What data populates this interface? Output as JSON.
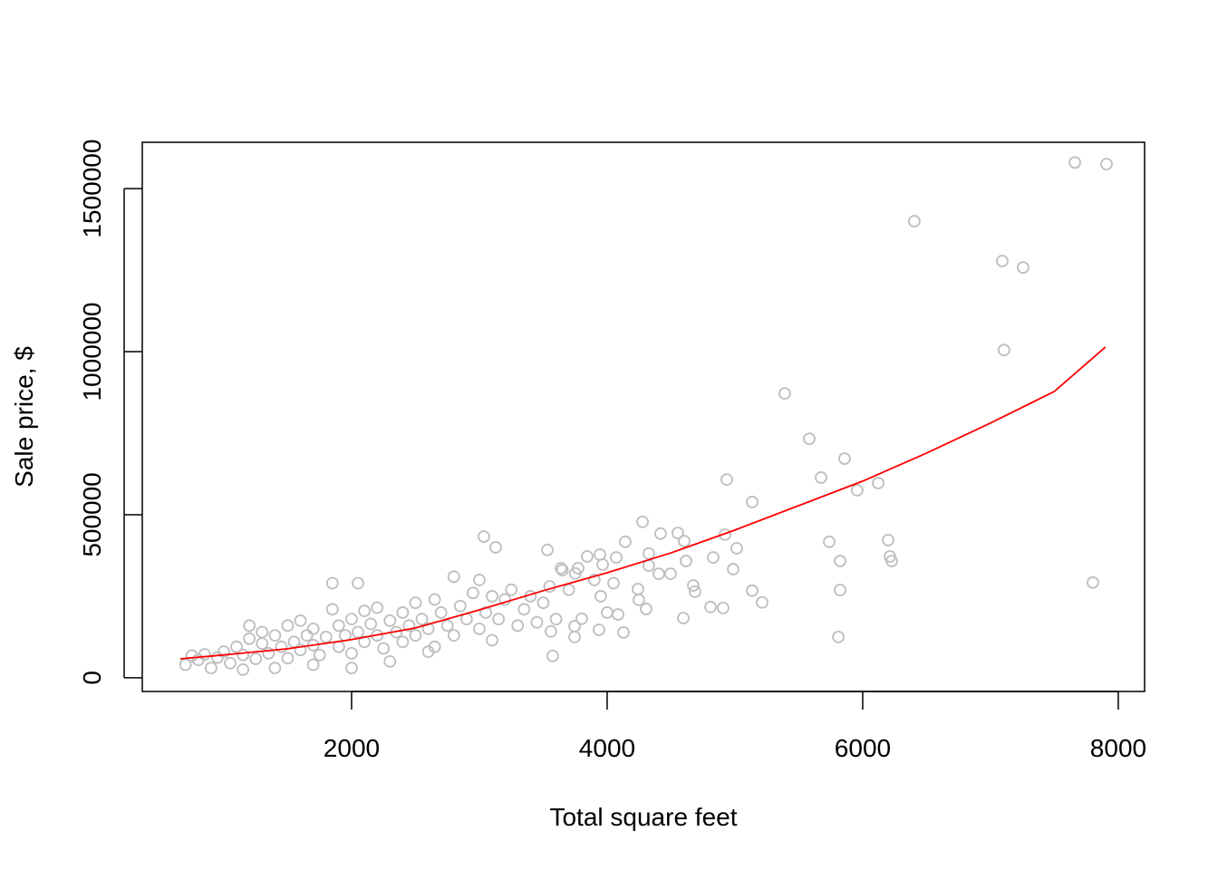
{
  "chart_data": {
    "type": "scatter",
    "xlabel": "Total square feet",
    "ylabel": "Sale price, $",
    "x": [
      7660,
      7908,
      6404,
      7092,
      7255,
      7106,
      5390,
      5582,
      5674,
      5858,
      5957,
      6121,
      4936,
      5135,
      6199,
      6213,
      6227,
      5738,
      5823,
      5823,
      5809,
      7801,
      4922,
      5014,
      4986,
      5135,
      5213,
      4908,
      4809,
      4830,
      4674,
      4688,
      4596,
      4617,
      4603,
      4553,
      4418,
      4277,
      4404,
      4496,
      4305,
      4326,
      4326,
      4241,
      4248,
      4142,
      4128,
      4085,
      4071,
      3965,
      3943,
      3844,
      3936,
      3801,
      3745,
      3745,
      3574,
      3560,
      3532,
      3035,
      3128,
      3773,
      3638,
      700,
      750,
      800,
      850,
      900,
      950,
      1000,
      1050,
      1100,
      1150,
      1200,
      1200,
      1250,
      1300,
      1300,
      1350,
      1400,
      1450,
      1500,
      1500,
      1550,
      1600,
      1600,
      1650,
      1700,
      1700,
      1750,
      1800,
      1850,
      1850,
      1900,
      1900,
      1950,
      2000,
      2000,
      2050,
      2050,
      2100,
      2100,
      2150,
      2200,
      2200,
      2250,
      2300,
      2350,
      2400,
      2400,
      2450,
      2500,
      2500,
      2550,
      2600,
      2650,
      2650,
      2700,
      2750,
      2800,
      2800,
      2850,
      2900,
      2950,
      3000,
      3000,
      3050,
      3100,
      3100,
      3150,
      3200,
      3250,
      3300,
      3350,
      3400,
      3450,
      3500,
      3550,
      3600,
      3650,
      3700,
      3750,
      3900,
      3950,
      4000,
      4050,
      1150,
      1400,
      1700,
      2000,
      2300,
      2600
    ],
    "y": [
      1580000,
      1575000,
      1400000,
      1278000,
      1258000,
      1005000,
      872000,
      733000,
      614000,
      672000,
      575000,
      597000,
      608000,
      539000,
      422000,
      372000,
      358000,
      417000,
      358000,
      269000,
      125000,
      292000,
      439000,
      397000,
      333000,
      267000,
      231000,
      214000,
      217000,
      369000,
      283000,
      264000,
      183000,
      358000,
      419000,
      444000,
      442000,
      478000,
      319000,
      319000,
      211000,
      381000,
      344000,
      272000,
      239000,
      417000,
      139000,
      194000,
      369000,
      347000,
      378000,
      372000,
      147000,
      181000,
      125000,
      158000,
      67000,
      142000,
      392000,
      433000,
      400000,
      336000,
      336000,
      40000,
      68000,
      55000,
      72000,
      30000,
      62000,
      80000,
      45000,
      95000,
      70000,
      160000,
      120000,
      58000,
      105000,
      140000,
      75000,
      130000,
      95000,
      160000,
      60000,
      110000,
      175000,
      85000,
      130000,
      100000,
      150000,
      70000,
      125000,
      290000,
      210000,
      95000,
      160000,
      130000,
      180000,
      75000,
      290000,
      140000,
      205000,
      110000,
      165000,
      130000,
      215000,
      90000,
      175000,
      140000,
      200000,
      110000,
      160000,
      230000,
      130000,
      180000,
      150000,
      240000,
      95000,
      200000,
      160000,
      310000,
      130000,
      220000,
      180000,
      260000,
      150000,
      300000,
      200000,
      250000,
      115000,
      180000,
      240000,
      270000,
      160000,
      210000,
      250000,
      170000,
      230000,
      280000,
      180000,
      330000,
      270000,
      320000,
      300000,
      250000,
      200000,
      290000,
      25000,
      30000,
      40000,
      30000,
      50000,
      80000
    ],
    "color": "#bebebe",
    "line": {
      "color": "#ff0000",
      "x": [
        660,
        1000,
        1500,
        2000,
        2500,
        3000,
        3500,
        4000,
        4500,
        5000,
        5500,
        6000,
        6500,
        7000,
        7500,
        7900
      ],
      "y": [
        58000,
        70000,
        89000,
        117000,
        153000,
        208000,
        267000,
        322000,
        383000,
        453000,
        528000,
        603000,
        689000,
        781000,
        878000,
        1014000
      ]
    },
    "xlim": [
      362,
      8206
    ],
    "ylim": [
      -42000,
      1642000
    ],
    "xticks": [
      2000,
      4000,
      6000,
      8000
    ],
    "yticks": [
      0,
      500000,
      1000000,
      1500000
    ]
  }
}
